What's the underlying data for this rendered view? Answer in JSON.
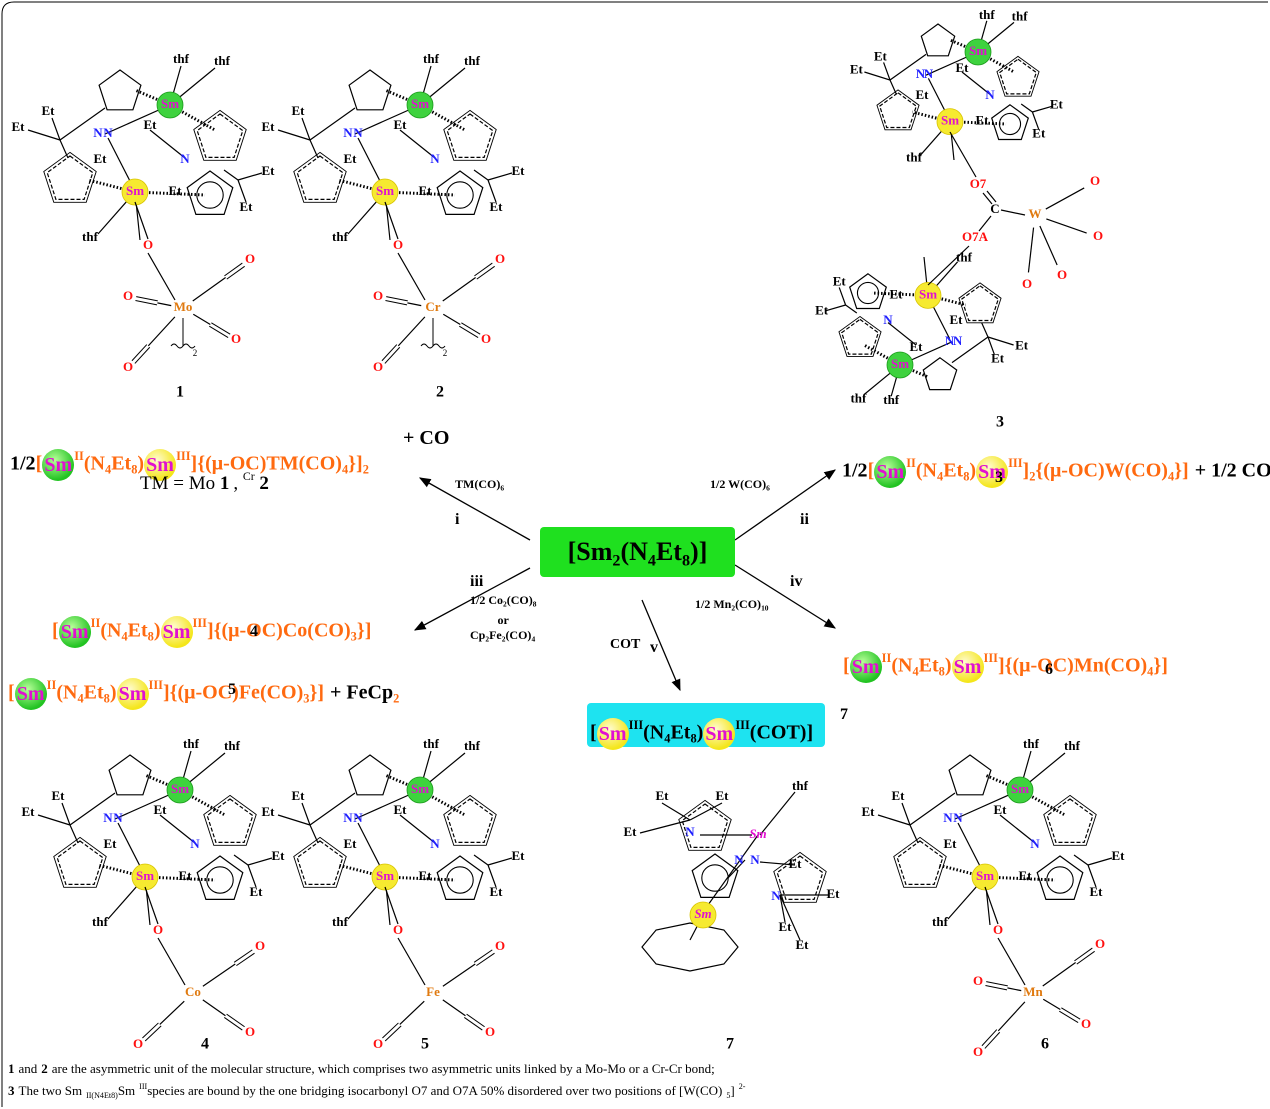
{
  "reactant": [
    "[Sm",
    "2",
    "(N",
    "4",
    "Et",
    "8",
    ")]"
  ],
  "reactions": [
    {
      "label": "i",
      "reagent": [
        "TM(CO)",
        "6"
      ]
    },
    {
      "label": "ii",
      "reagent": [
        "1/2 W(CO)",
        "6"
      ]
    },
    {
      "label": "iii",
      "reagent": [
        "1/2 Co",
        "2",
        "(CO)",
        "8",
        "or",
        "Cp",
        "2",
        "Fe",
        "2",
        "(CO)",
        "4"
      ]
    },
    {
      "label": "iv",
      "reagent": [
        "1/2 Mn",
        "2",
        "(CO)",
        "10"
      ]
    },
    {
      "label": "v",
      "reagent": [
        "COT"
      ]
    }
  ],
  "products": [
    {
      "formula": [
        "1/2",
        "[",
        "Sm",
        "II",
        "(N",
        "4",
        "Et",
        "8",
        ")",
        "Sm",
        "III",
        "]{(μ-OC)TM(CO)",
        "4",
        "}]",
        "2"
      ],
      "extra": [
        "+ CO"
      ],
      "note": [
        "TM = Mo ",
        "1",
        ", ",
        "Cr",
        " 2"
      ]
    },
    {
      "formula": [
        "1/2",
        "[",
        "Sm",
        "II",
        "(N",
        "4",
        "Et",
        "8",
        ")",
        "Sm",
        "III",
        "]",
        "2",
        "{(μ-OC)W(CO)",
        "4",
        "}]"
      ],
      "extra": [
        "+ 1/2 CO"
      ],
      "number": "3"
    },
    {
      "formula": [
        "[",
        "Sm",
        "II",
        "(N",
        "4",
        "Et",
        "8",
        ")",
        "Sm",
        "III",
        "]{(μ-OC)Co(CO)",
        "3",
        "}]"
      ],
      "number": "4"
    },
    {
      "formula": [
        "[",
        "Sm",
        "II",
        "(N",
        "4",
        "Et",
        "8",
        ")",
        "Sm",
        "III",
        "]{(μ-OC)Fe(CO)",
        "3",
        "}]"
      ],
      "extra": [
        "+ FeCp",
        "2"
      ],
      "number": "5"
    },
    {
      "formula": [
        "[",
        "Sm",
        "II",
        "(N",
        "4",
        "Et",
        "8",
        ")",
        "Sm",
        "III",
        "]{(μ-OC)Mn(CO)",
        "4",
        "}]"
      ],
      "number": "6"
    },
    {
      "formula": [
        "[",
        "Sm",
        "III",
        "(N",
        "4",
        "Et",
        "8",
        ")",
        "Sm",
        "III",
        "(COT)]"
      ],
      "number": "7"
    }
  ],
  "structures": [
    {
      "number": "1",
      "atoms": [
        "thf",
        "thf",
        "Et",
        "Et",
        "Sm",
        "N",
        "N",
        "Et",
        "Et",
        "N",
        "Sm",
        "Et",
        "Et",
        "Et",
        "thf"
      ],
      "metal": "Mo",
      "oxygens": [
        "O",
        "O",
        "O",
        "O",
        "O"
      ],
      "bond_label": "2"
    },
    {
      "number": "2",
      "atoms": [
        "thf",
        "thf",
        "Et",
        "Et",
        "Sm",
        "N",
        "N",
        "Et",
        "Et",
        "N",
        "Sm",
        "Et",
        "Et",
        "Et",
        "thf"
      ],
      "metal": "Cr",
      "oxygens": [
        "O",
        "O",
        "O",
        "O",
        "O"
      ],
      "bond_label": "2"
    },
    {
      "number": "3",
      "units": [
        [
          "thf",
          "thf",
          "Et",
          "Et",
          "Sm",
          "N",
          "N",
          "Et",
          "Et",
          "N",
          "Sm",
          "Et",
          "Et",
          "Et",
          "thf"
        ],
        [
          "thf",
          "thf",
          "Et",
          "Et",
          "Sm",
          "N",
          "N",
          "Et",
          "Et",
          "N",
          "Sm",
          "Et",
          "Et",
          "Et",
          "thf"
        ]
      ],
      "metal": "W",
      "bridge": [
        "O7",
        "C",
        "O7A"
      ],
      "oxygens": [
        "O",
        "O",
        "O",
        "O"
      ]
    },
    {
      "number": "4",
      "atoms": [
        "thf",
        "thf",
        "Et",
        "Et",
        "Sm",
        "N",
        "N",
        "Et",
        "Et",
        "N",
        "Sm",
        "Et",
        "Et",
        "Et",
        "thf"
      ],
      "metal": "Co",
      "oxygens": [
        "O",
        "O",
        "O",
        "O"
      ]
    },
    {
      "number": "5",
      "atoms": [
        "thf",
        "thf",
        "Et",
        "Et",
        "Sm",
        "N",
        "N",
        "Et",
        "Et",
        "N",
        "Sm",
        "Et",
        "Et",
        "Et",
        "thf"
      ],
      "metal": "Fe",
      "oxygens": [
        "O",
        "O",
        "O",
        "O"
      ]
    },
    {
      "number": "7",
      "atoms": [
        "Et",
        "Et",
        "Et",
        "N",
        "Sm",
        "thf",
        "N",
        "N",
        "Et",
        "Sm",
        "N",
        "Et",
        "Et",
        "Et"
      ]
    },
    {
      "number": "6",
      "atoms": [
        "thf",
        "thf",
        "Et",
        "Et",
        "Sm",
        "N",
        "N",
        "Et",
        "Et",
        "N",
        "Sm",
        "Et",
        "Et",
        "Et",
        "thf"
      ],
      "metal": "Mn",
      "oxygens": [
        "O",
        "O",
        "O",
        "O",
        "O"
      ]
    }
  ],
  "footnotes": [
    [
      "1",
      "and",
      "2",
      "are the asymmetric unit of the molecular structure, which comprises two asymmetric units linked by a Mo-Mo or a Cr-Cr bond;"
    ],
    [
      "3",
      "The two Sm",
      "II",
      "(N",
      "4",
      "Et",
      "8",
      ")",
      "Sm",
      "III",
      "species are bound by  the one bridging isocarbonyl O7 and O7A 50% disordered over two positions of [W(CO)",
      "5",
      "]",
      "2-"
    ]
  ]
}
